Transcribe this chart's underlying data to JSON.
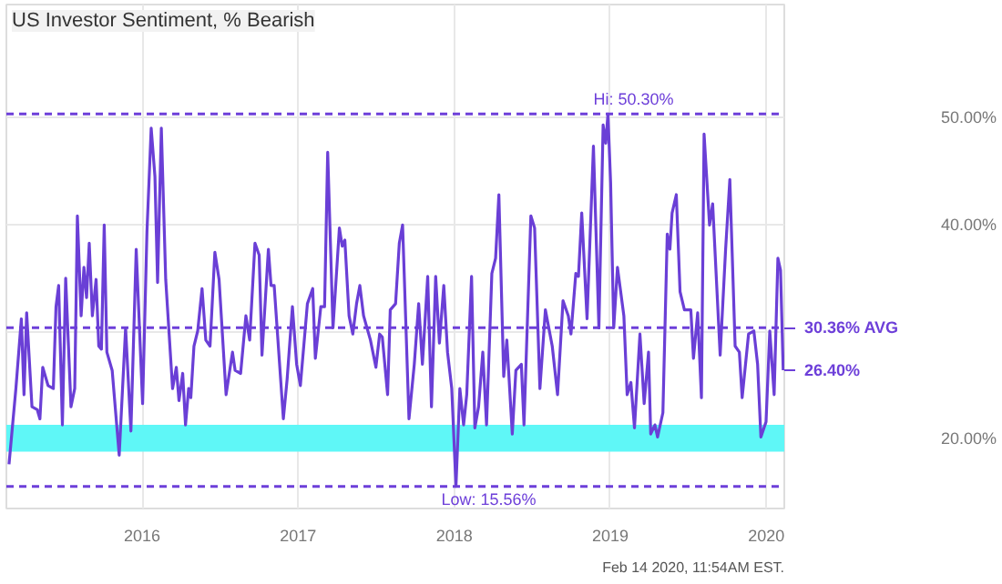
{
  "chart_data": {
    "type": "line",
    "title": "US Investor Sentiment, % Bearish",
    "xlim": [
      2015.13,
      2020.115
    ],
    "ylim": [
      13.5,
      60.5
    ],
    "xticks": [
      2016,
      2017,
      2018,
      2019,
      2020
    ],
    "yticks": [
      {
        "value": 20,
        "label": "20.00%"
      },
      {
        "value": 30,
        "label": null
      },
      {
        "value": 40,
        "label": "40.00%"
      },
      {
        "value": 50,
        "label": "50.00%"
      }
    ],
    "grid": true,
    "marker": "none",
    "line_style": "solid",
    "series": [
      {
        "color": "#6a3fd6",
        "x": [
          2015.147,
          2015.191,
          2015.226,
          2015.243,
          2015.26,
          2015.294,
          2015.328,
          2015.345,
          2015.363,
          2015.397,
          2015.431,
          2015.448,
          2015.465,
          2015.489,
          2015.51,
          2015.544,
          2015.568,
          2015.585,
          2015.609,
          2015.627,
          2015.644,
          2015.661,
          2015.681,
          2015.705,
          2015.722,
          2015.739,
          2015.757,
          2015.774,
          2015.808,
          2015.853,
          2015.894,
          2015.928,
          2015.962,
          2016.003,
          2016.031,
          2016.058,
          2016.082,
          2016.099,
          2016.123,
          2016.151,
          2016.195,
          2016.219,
          2016.236,
          2016.26,
          2016.278,
          2016.298,
          2016.312,
          2016.332,
          2016.356,
          2016.384,
          2016.408,
          2016.435,
          2016.466,
          2016.493,
          2016.538,
          2016.579,
          2016.596,
          2016.631,
          2016.665,
          2016.689,
          2016.723,
          2016.75,
          2016.768,
          2016.809,
          2016.826,
          2016.846,
          2016.905,
          2016.929,
          2016.963,
          2016.99,
          2017.014,
          2017.059,
          2017.093,
          2017.11,
          2017.145,
          2017.169,
          2017.189,
          2017.223,
          2017.264,
          2017.282,
          2017.299,
          2017.326,
          2017.35,
          2017.374,
          2017.395,
          2017.419,
          2017.463,
          2017.498,
          2017.522,
          2017.539,
          2017.573,
          2017.59,
          2017.624,
          2017.648,
          2017.669,
          2017.71,
          2017.744,
          2017.772,
          2017.796,
          2017.83,
          2017.854,
          2017.881,
          2017.905,
          2017.933,
          2017.957,
          2017.984,
          2018.011,
          2018.036,
          2018.06,
          2018.08,
          2018.111,
          2018.132,
          2018.156,
          2018.183,
          2018.207,
          2018.241,
          2018.265,
          2018.286,
          2018.317,
          2018.337,
          2018.372,
          2018.395,
          2018.43,
          2018.447,
          2018.491,
          2018.515,
          2018.549,
          2018.584,
          2018.628,
          2018.662,
          2018.697,
          2018.731,
          2018.748,
          2018.779,
          2018.796,
          2018.817,
          2018.851,
          2018.892,
          2018.927,
          2018.954,
          2018.971,
          2018.985,
          2019.002,
          2019.022,
          2019.046,
          2019.087,
          2019.108,
          2019.132,
          2019.155,
          2019.19,
          2019.217,
          2019.245,
          2019.259,
          2019.286,
          2019.303,
          2019.337,
          2019.365,
          2019.382,
          2019.396,
          2019.423,
          2019.447,
          2019.475,
          2019.516,
          2019.533,
          2019.56,
          2019.584,
          2019.601,
          2019.636,
          2019.656,
          2019.68,
          2019.704,
          2019.739,
          2019.766,
          2019.8,
          2019.827,
          2019.845,
          2019.886,
          2019.92,
          2019.944,
          2019.965,
          2019.998,
          2020.022,
          2020.05,
          2020.074,
          2020.091,
          2020.108
        ],
        "values": [
          17.63,
          24.69,
          31.19,
          24.12,
          31.75,
          22.99,
          22.71,
          21.86,
          26.67,
          24.97,
          24.69,
          32.32,
          34.29,
          21.3,
          34.97,
          22.99,
          24.69,
          40.79,
          31.47,
          35.99,
          33.16,
          38.25,
          31.47,
          34.86,
          28.64,
          28.36,
          39.94,
          28.08,
          26.38,
          18.47,
          30.34,
          20.73,
          37.68,
          23.28,
          39.38,
          48.98,
          44.46,
          34.58,
          48.98,
          34.86,
          24.69,
          26.67,
          23.56,
          26.1,
          21.3,
          24.69,
          23.84,
          28.64,
          30.06,
          34.01,
          29.21,
          28.64,
          37.4,
          34.86,
          24.12,
          28.08,
          26.38,
          26.1,
          31.47,
          29.21,
          38.25,
          37.12,
          27.8,
          37.68,
          34.29,
          34.29,
          21.86,
          25.54,
          32.32,
          26.95,
          24.97,
          32.6,
          34.01,
          27.51,
          32.32,
          32.32,
          46.72,
          30.34,
          39.66,
          37.97,
          38.53,
          31.47,
          29.77,
          32.6,
          34.29,
          31.47,
          29.21,
          26.67,
          29.77,
          29.49,
          24.12,
          32.03,
          32.6,
          38.25,
          39.94,
          21.86,
          26.95,
          32.6,
          26.95,
          35.14,
          22.99,
          35.14,
          28.93,
          34.29,
          28.08,
          24.69,
          15.56,
          24.69,
          21.3,
          24.12,
          35.14,
          21.02,
          22.99,
          28.08,
          21.3,
          35.42,
          36.84,
          42.77,
          25.82,
          29.21,
          20.45,
          26.38,
          26.95,
          21.3,
          40.79,
          39.66,
          24.69,
          32.03,
          28.64,
          24.12,
          32.88,
          31.47,
          29.77,
          35.42,
          35.14,
          41.07,
          31.19,
          47.29,
          30.34,
          49.27,
          47.57,
          50.3,
          43.9,
          30.34,
          35.99,
          31.47,
          24.12,
          25.25,
          21.02,
          29.77,
          23.28,
          28.08,
          20.45,
          21.3,
          20.17,
          22.43,
          39.1,
          37.68,
          41.07,
          42.77,
          33.73,
          32.03,
          32.03,
          27.51,
          31.75,
          23.84,
          48.42,
          39.94,
          41.92,
          34.86,
          27.8,
          37.68,
          44.18,
          28.64,
          28.08,
          23.84,
          29.77,
          30.06,
          26.95,
          20.17,
          21.58,
          30.06,
          24.12,
          36.84,
          35.71,
          26.4
        ]
      }
    ],
    "ref_lines": [
      {
        "axis": "y",
        "value": 50.3,
        "label": "Hi: 50.30%",
        "color": "#6d3fd9",
        "line_style": "dashed"
      },
      {
        "axis": "y",
        "value": 30.36,
        "label": "30.36% AVG",
        "color": "#6d3fd9",
        "line_style": "dashed"
      },
      {
        "axis": "y",
        "value": 15.56,
        "label": "Low: 15.56%",
        "color": "#6d3fd9",
        "line_style": "dashed"
      }
    ],
    "bands": [
      {
        "axis": "y",
        "from": 18.8,
        "to": 21.3,
        "label": null,
        "color": "#5ff7f7"
      }
    ],
    "annotations": [
      {
        "text": "26.40%",
        "x": 2020.108,
        "y": 26.4
      },
      "Feb 14 2020, 11:54AM EST."
    ]
  }
}
